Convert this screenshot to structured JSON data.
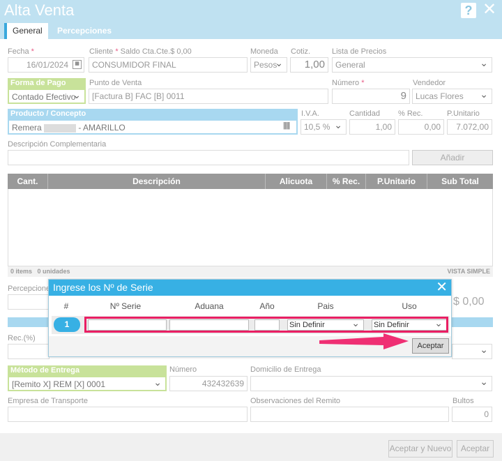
{
  "window": {
    "title": "Alta Venta",
    "help_glyph": "?",
    "close_glyph": "✕"
  },
  "tabs": [
    {
      "label": "General"
    },
    {
      "label": "Percepciones"
    }
  ],
  "form": {
    "fecha": {
      "label": "Fecha",
      "value": "16/01/2024"
    },
    "cliente": {
      "label": "Cliente",
      "saldo": "Saldo Cta.Cte.$ 0,00",
      "value": "CONSUMIDOR FINAL"
    },
    "moneda": {
      "label": "Moneda",
      "value": "Pesos"
    },
    "cotiz": {
      "label": "Cotiz.",
      "value": "1,00"
    },
    "lista": {
      "label": "Lista de Precios",
      "value": "General"
    },
    "forma_pago": {
      "label": "Forma de Pago",
      "value": "Contado Efectivo"
    },
    "punto_venta": {
      "label": "Punto de Venta",
      "value": "[Factura B] FAC [B] 0011"
    },
    "numero": {
      "label": "Número",
      "value": "9"
    },
    "vendedor": {
      "label": "Vendedor",
      "value": "Lucas Flores"
    },
    "producto": {
      "label": "Producto / Concepto",
      "value_prefix": "Remera",
      "value_suffix": "- AMARILLO"
    },
    "iva": {
      "label": "I.V.A.",
      "value": "10,5 %"
    },
    "cantidad": {
      "label": "Cantidad",
      "value": "1,00"
    },
    "rec": {
      "label": "% Rec.",
      "value": "0,00"
    },
    "punitario": {
      "label": "P.Unitario",
      "value": "7.072,00"
    },
    "desc_comp": {
      "label": "Descripción Complementaria",
      "value": ""
    },
    "anadir": "Añadir"
  },
  "grid": {
    "columns": [
      "Cant.",
      "Descripción",
      "Alicuota",
      "% Rec.",
      "P.Unitario",
      "Sub Total"
    ],
    "footer_left": "0 items   0 unidades",
    "footer_right": "VISTA SIMPLE"
  },
  "lower": {
    "percepciones_label": "Percepcione",
    "total": "$ 0,00",
    "rec_label": "Rec.(%)",
    "metodo": {
      "label": "Método de Entrega",
      "value": "[Remito X] REM [X] 0001"
    },
    "numero": {
      "label": "Número",
      "value": "432432639"
    },
    "domicilio": {
      "label": "Domicilio de Entrega"
    },
    "empresa": {
      "label": "Empresa de Transporte"
    },
    "observaciones": {
      "label": "Observaciones del Remito"
    },
    "bultos": {
      "label": "Bultos",
      "value": "0"
    }
  },
  "footer": {
    "aceptar_nuevo": "Aceptar y Nuevo",
    "aceptar": "Aceptar"
  },
  "modal": {
    "title": "Ingrese los Nº de Serie",
    "columns": [
      "#",
      "Nº Serie",
      "Aduana",
      "Año",
      "Pais",
      "Uso"
    ],
    "row": {
      "num": "1",
      "pais": "Sin Definir",
      "uso": "Sin Definir"
    },
    "aceptar": "Aceptar"
  },
  "colors": {
    "accent": "#37b0e4",
    "highlight": "#e91e63",
    "green": "#c8e29a"
  }
}
